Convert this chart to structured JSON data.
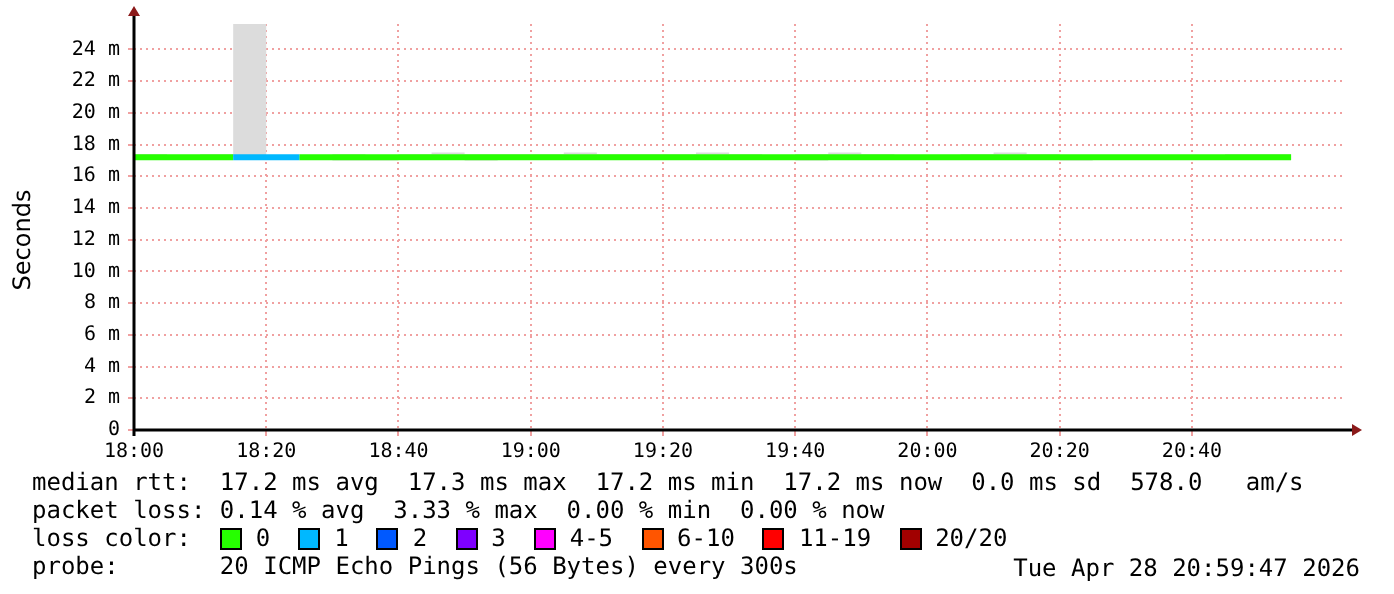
{
  "chart_data": {
    "type": "step",
    "ylabel": "Seconds",
    "legend_title": "loss color:",
    "legend": "bottom",
    "grid": true,
    "marker": "none",
    "line_style": "solid",
    "x": [
      18,
      18.0833,
      18.1667,
      18.25,
      18.3333,
      18.4167,
      18.5,
      18.5833,
      18.6667,
      18.75,
      18.8333,
      18.9167,
      19,
      19.0833,
      19.1667,
      19.25,
      19.3333,
      19.4167,
      19.5,
      19.5833,
      19.6667,
      19.75,
      19.8333,
      19.9167,
      20,
      20.0833,
      20.1667,
      20.25,
      20.3333,
      20.4167,
      20.5,
      20.5833,
      20.6667,
      20.75,
      20.8333,
      20.9167
    ],
    "xlim": [
      18,
      21.05
    ],
    "xticks": [
      {
        "value": 18,
        "label": "18:00"
      },
      {
        "value": 18.3333,
        "label": "18:20"
      },
      {
        "value": 18.6667,
        "label": "18:40"
      },
      {
        "value": 19,
        "label": "19:00"
      },
      {
        "value": 19.3333,
        "label": "19:20"
      },
      {
        "value": 19.6667,
        "label": "19:40"
      },
      {
        "value": 20,
        "label": "20:00"
      },
      {
        "value": 20.3333,
        "label": "20:20"
      },
      {
        "value": 20.6667,
        "label": "20:40"
      }
    ],
    "ylim": [
      0,
      25.6
    ],
    "yticks": [
      0,
      {
        "value": 2,
        "label": "2 m"
      },
      {
        "value": 4,
        "label": "4 m"
      },
      {
        "value": 6,
        "label": "6 m"
      },
      {
        "value": 8,
        "label": "8 m"
      },
      {
        "value": 10,
        "label": "10 m"
      },
      {
        "value": 12,
        "label": "12 m"
      },
      {
        "value": 14,
        "label": "14 m"
      },
      {
        "value": 16,
        "label": "16 m"
      },
      {
        "value": 18,
        "label": "18 m"
      },
      {
        "value": 20,
        "label": "20 m"
      },
      {
        "value": 22,
        "label": "22 m"
      },
      {
        "value": 24,
        "label": "24 m"
      }
    ],
    "series": [
      {
        "name": "0",
        "color": "#26ff00",
        "values": [
          17.2,
          17.2,
          17.2,
          17.2,
          null,
          17.2,
          17.2,
          17.2,
          17.2,
          17.2,
          17.2,
          17.2,
          17.2,
          17.2,
          17.2,
          17.2,
          17.2,
          17.2,
          17.2,
          17.2,
          17.2,
          17.2,
          17.2,
          17.2,
          17.2,
          17.2,
          17.2,
          17.2,
          17.2,
          17.2,
          17.2,
          17.2,
          17.2,
          17.2,
          17.2,
          17.2
        ],
        "lower": [
          17.1,
          17.1,
          17.1,
          17.1,
          17.2,
          17.1,
          17.1,
          17.0,
          17.0,
          17.1,
          17.1,
          17.0,
          17.1,
          17.1,
          17.1,
          17.1,
          17.1,
          17.1,
          17.1,
          17.1,
          17.1,
          17.0,
          17.1,
          17.1,
          17.1,
          17.1,
          17.1,
          17.1,
          17.1,
          17.0,
          17.1,
          17.1,
          17.1,
          17.1,
          17.1,
          17.1
        ],
        "upper": [
          17.6,
          17.4,
          17.3,
          17.4,
          25.6,
          17.3,
          17.3,
          17.4,
          17.3,
          17.4,
          17.5,
          17.4,
          17.4,
          17.4,
          17.5,
          17.4,
          17.4,
          17.4,
          17.5,
          17.4,
          17.3,
          17.4,
          17.5,
          17.4,
          17.3,
          17.3,
          17.4,
          17.5,
          17.4,
          17.3,
          17.3,
          17.3,
          17.3,
          17.3,
          17.4,
          17.4
        ]
      },
      {
        "name": "1",
        "color": "#00b8ff",
        "values": [
          null,
          null,
          null,
          17.2,
          17.2,
          17.2,
          null,
          null,
          null,
          null,
          null,
          null,
          null,
          null,
          null,
          null,
          null,
          null,
          null,
          null,
          null,
          null,
          null,
          null,
          null,
          null,
          null,
          null,
          null,
          null,
          null,
          null,
          null,
          null,
          null,
          null
        ]
      },
      {
        "name": "2",
        "color": "#0059ff",
        "values": [
          null,
          null,
          null,
          null,
          null,
          null,
          null,
          null,
          null,
          null,
          null,
          null,
          null,
          null,
          null,
          null,
          null,
          null,
          null,
          null,
          null,
          null,
          null,
          null,
          null,
          null,
          null,
          null,
          null,
          null,
          null,
          null,
          null,
          null,
          null,
          null
        ]
      },
      {
        "name": "3",
        "color": "#7e00ff",
        "values": [
          null,
          null,
          null,
          null,
          null,
          null,
          null,
          null,
          null,
          null,
          null,
          null,
          null,
          null,
          null,
          null,
          null,
          null,
          null,
          null,
          null,
          null,
          null,
          null,
          null,
          null,
          null,
          null,
          null,
          null,
          null,
          null,
          null,
          null,
          null,
          null
        ]
      },
      {
        "name": "4-5",
        "color": "#ff00ff",
        "values": [
          null,
          null,
          null,
          null,
          null,
          null,
          null,
          null,
          null,
          null,
          null,
          null,
          null,
          null,
          null,
          null,
          null,
          null,
          null,
          null,
          null,
          null,
          null,
          null,
          null,
          null,
          null,
          null,
          null,
          null,
          null,
          null,
          null,
          null,
          null,
          null
        ]
      },
      {
        "name": "6-10",
        "color": "#ff5500",
        "values": [
          null,
          null,
          null,
          null,
          null,
          null,
          null,
          null,
          null,
          null,
          null,
          null,
          null,
          null,
          null,
          null,
          null,
          null,
          null,
          null,
          null,
          null,
          null,
          null,
          null,
          null,
          null,
          null,
          null,
          null,
          null,
          null,
          null,
          null,
          null,
          null
        ]
      },
      {
        "name": "11-19",
        "color": "#ff0000",
        "values": [
          null,
          null,
          null,
          null,
          null,
          null,
          null,
          null,
          null,
          null,
          null,
          null,
          null,
          null,
          null,
          null,
          null,
          null,
          null,
          null,
          null,
          null,
          null,
          null,
          null,
          null,
          null,
          null,
          null,
          null,
          null,
          null,
          null,
          null,
          null,
          null
        ]
      },
      {
        "name": "20/20",
        "color": "#a10000",
        "values": [
          null,
          null,
          null,
          null,
          null,
          null,
          null,
          null,
          null,
          null,
          null,
          null,
          null,
          null,
          null,
          null,
          null,
          null,
          null,
          null,
          null,
          null,
          null,
          null,
          null,
          null,
          null,
          null,
          null,
          null,
          null,
          null,
          null,
          null,
          null,
          null
        ]
      }
    ],
    "annotations": [
      "median rtt:  17.2 ms avg  17.3 ms max  17.2 ms min  17.2 ms now  0.0 ms sd  578.0   am/s",
      "packet loss: 0.14 % avg  3.33 % max  0.00 % min  0.00 % now",
      "probe:       20 ICMP Echo Pings (56 Bytes) every 300s",
      "Tue Apr 28 20:59:47 2026"
    ]
  }
}
